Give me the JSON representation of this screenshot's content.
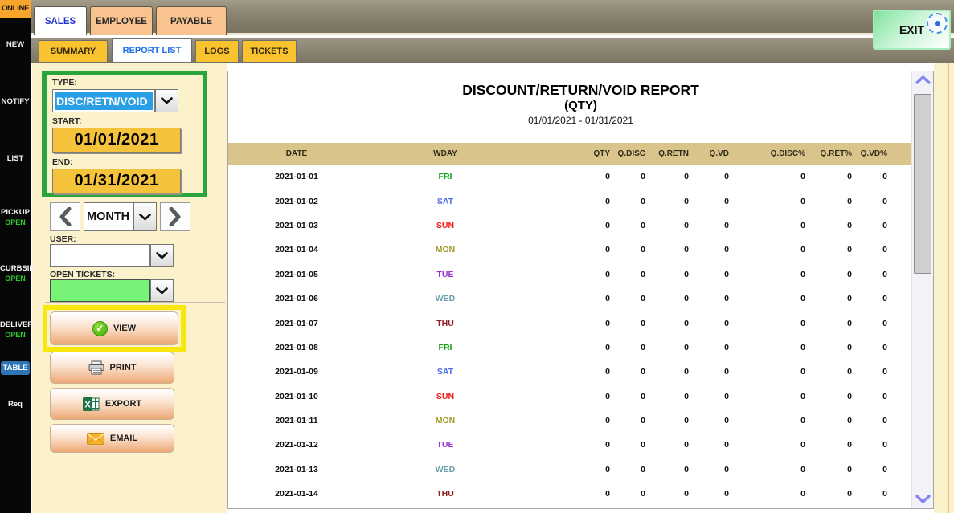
{
  "sidebar": {
    "online": "ONLINE",
    "items": {
      "new": "NEW",
      "notify": "NOTIFY",
      "list": "LIST",
      "pickup": "PICKUP",
      "pickup_status": "OPEN",
      "curbside": "CURBSID",
      "curbside_status": "OPEN",
      "delivery": "DELIVER",
      "delivery_status": "OPEN",
      "table": "TABLE",
      "req": "Req"
    }
  },
  "tabs_primary": [
    {
      "label": "SALES",
      "active": true
    },
    {
      "label": "EMPLOYEE",
      "active": false
    },
    {
      "label": "PAYABLE",
      "active": false
    }
  ],
  "tabs_secondary": [
    {
      "label": "SUMMARY",
      "active": false
    },
    {
      "label": "REPORT LIST",
      "active": true
    },
    {
      "label": "LOGS",
      "active": false
    },
    {
      "label": "TICKETS",
      "active": false
    }
  ],
  "exit_label": "EXIT",
  "filters": {
    "type_label": "TYPE:",
    "type_value": "DISC/RETN/VOID",
    "start_label": "START:",
    "start_value": "01/01/2021",
    "end_label": "END:",
    "end_value": "01/31/2021",
    "month_value": "MONTH",
    "user_label": "USER:",
    "user_value": "",
    "open_tickets_label": "OPEN TICKETS:",
    "open_tickets_value": ""
  },
  "actions": {
    "view": "VIEW",
    "print": "PRINT",
    "export": "EXPORT",
    "email": "EMAIL"
  },
  "report": {
    "title": "DISCOUNT/RETURN/VOID REPORT",
    "subtitle": "(QTY)",
    "date_range": "01/01/2021 - 01/31/2021",
    "columns": [
      "DATE",
      "WDAY",
      "QTY",
      "Q.DISC",
      "Q.RETN",
      "Q.VD",
      "Q.DISC%",
      "Q.RET%",
      "Q.VD%"
    ],
    "wday_colors": {
      "FRI": "#16a316",
      "SAT": "#4f6bed",
      "SUN": "#f31b1b",
      "MON": "#a09a28",
      "TUE": "#9a35cf",
      "WED": "#6b9fae",
      "THU": "#8f1f1f"
    },
    "rows": [
      {
        "date": "2021-01-01",
        "wday": "FRI",
        "values": [
          0,
          0,
          0,
          0,
          0,
          0,
          0
        ]
      },
      {
        "date": "2021-01-02",
        "wday": "SAT",
        "values": [
          0,
          0,
          0,
          0,
          0,
          0,
          0
        ]
      },
      {
        "date": "2021-01-03",
        "wday": "SUN",
        "values": [
          0,
          0,
          0,
          0,
          0,
          0,
          0
        ]
      },
      {
        "date": "2021-01-04",
        "wday": "MON",
        "values": [
          0,
          0,
          0,
          0,
          0,
          0,
          0
        ]
      },
      {
        "date": "2021-01-05",
        "wday": "TUE",
        "values": [
          0,
          0,
          0,
          0,
          0,
          0,
          0
        ]
      },
      {
        "date": "2021-01-06",
        "wday": "WED",
        "values": [
          0,
          0,
          0,
          0,
          0,
          0,
          0
        ]
      },
      {
        "date": "2021-01-07",
        "wday": "THU",
        "values": [
          0,
          0,
          0,
          0,
          0,
          0,
          0
        ]
      },
      {
        "date": "2021-01-08",
        "wday": "FRI",
        "values": [
          0,
          0,
          0,
          0,
          0,
          0,
          0
        ]
      },
      {
        "date": "2021-01-09",
        "wday": "SAT",
        "values": [
          0,
          0,
          0,
          0,
          0,
          0,
          0
        ]
      },
      {
        "date": "2021-01-10",
        "wday": "SUN",
        "values": [
          0,
          0,
          0,
          0,
          0,
          0,
          0
        ]
      },
      {
        "date": "2021-01-11",
        "wday": "MON",
        "values": [
          0,
          0,
          0,
          0,
          0,
          0,
          0
        ]
      },
      {
        "date": "2021-01-12",
        "wday": "TUE",
        "values": [
          0,
          0,
          0,
          0,
          0,
          0,
          0
        ]
      },
      {
        "date": "2021-01-13",
        "wday": "WED",
        "values": [
          0,
          0,
          0,
          0,
          0,
          0,
          0
        ]
      },
      {
        "date": "2021-01-14",
        "wday": "THU",
        "values": [
          0,
          0,
          0,
          0,
          0,
          0,
          0
        ]
      }
    ]
  },
  "colors": {
    "highlight_green": "#2AA43C",
    "highlight_yellow": "#F7E70C",
    "open_tickets_green": "#77F377",
    "selection_blue": "#2B9FE5",
    "date_button_gold": "#F5C33B",
    "header_tan": "#D9C48B",
    "tab_gold": "#F8C32F",
    "tab_peach": "#F8C38E",
    "table_item_blue": "#2E75B6",
    "online_orange": "#F7A52B"
  }
}
